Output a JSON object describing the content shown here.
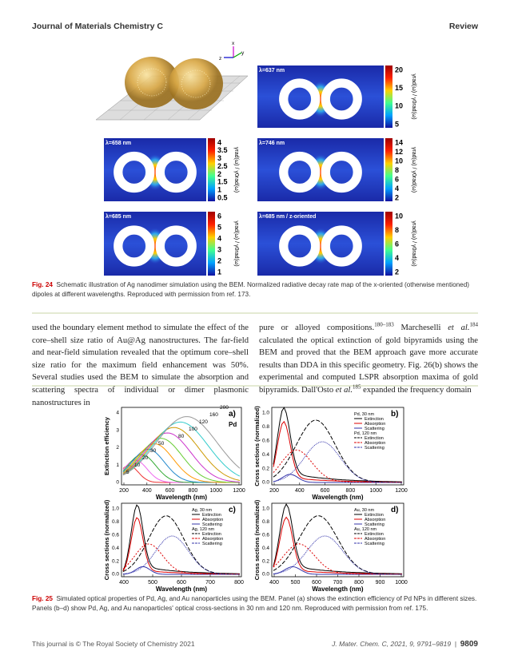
{
  "header": {
    "journal": "Journal of Materials Chemistry C",
    "section": "Review"
  },
  "figure24": {
    "axes": [
      "x",
      "z",
      "y"
    ],
    "colorbar_label": "γrad(ω) / γ0rad(ω)",
    "panels": [
      {
        "label": "λ=637 nm",
        "colorbar": [
          "20",
          "15",
          "10",
          "5"
        ]
      },
      {
        "label": "λ=658 nm",
        "colorbar": [
          "4",
          "3.5",
          "3",
          "2.5",
          "2",
          "1.5",
          "1",
          "0.5"
        ]
      },
      {
        "label": "λ=746 nm",
        "colorbar": [
          "14",
          "12",
          "10",
          "8",
          "6",
          "4",
          "2"
        ]
      },
      {
        "label": "λ=685 nm",
        "colorbar": [
          "6",
          "5",
          "4",
          "3",
          "2",
          "1"
        ]
      },
      {
        "label": "λ=685 nm / z-oriented",
        "colorbar": [
          "10",
          "8",
          "6",
          "4",
          "2"
        ]
      }
    ],
    "caption": {
      "label": "Fig. 24",
      "text": "Schematic illustration of Ag nanodimer simulation using the BEM. Normalized radiative decay rate map of the x-oriented (otherwise mentioned) dipoles at different wavelengths. Reproduced with permission from ref. 173."
    }
  },
  "body": {
    "left": "used the boundary element method to simulate the effect of the core–shell size ratio of Au@Ag nanostructures. The far-field and near-field simulation revealed that the optimum core–shell size ratio for the maximum field enhancement was 50%. Several studies used the BEM to simulate the absorption and scattering spectra of individual or dimer plasmonic nanostructures in",
    "right": [
      {
        "text": "pure or alloyed compositions."
      },
      {
        "text": "180–183",
        "style": "sup"
      },
      {
        "text": " Marcheselli "
      },
      {
        "text": "et al.",
        "style": "italic"
      },
      {
        "text": "184",
        "style": "sup"
      },
      {
        "text": " calculated the optical extinction of gold bipyramids using the BEM and proved that the BEM approach gave more accurate results than DDA in this specific geometry. Fig. 26(b) shows the experimental and computed LSPR absorption maxima of gold bipyramids. Dall'Osto "
      },
      {
        "text": "et al.",
        "style": "italic"
      },
      {
        "text": "185",
        "style": "sup"
      },
      {
        "text": " expanded the frequency domain"
      }
    ]
  },
  "figure25": {
    "panels": [
      {
        "label": "a)",
        "ylabel": "Extinction efficiency",
        "xlabel": "Wavelength (nm)",
        "xticks": [
          "200",
          "400",
          "600",
          "800",
          "1000",
          "1200"
        ],
        "yticks": [
          "0",
          "1",
          "2",
          "3",
          "4"
        ],
        "legend": [
          {
            "title": "Pd",
            "entries": []
          }
        ],
        "sizes": [
          "5",
          "10",
          "20",
          "30",
          "50",
          "80",
          "100",
          "120",
          "160",
          "200"
        ]
      },
      {
        "label": "b)",
        "ylabel": "Cross sections (normalized)",
        "xlabel": "Wavelength (nm)",
        "xticks": [
          "200",
          "400",
          "600",
          "800",
          "1000",
          "1200"
        ],
        "yticks": [
          "0.0",
          "0.2",
          "0.4",
          "0.6",
          "0.8",
          "1.0"
        ],
        "legend": [
          {
            "title": "Pd, 30 nm",
            "entries": [
              "Extinction",
              "Absorption",
              "Scattering"
            ]
          },
          {
            "title": "Pd, 120 nm",
            "entries": [
              "Extinction",
              "Absorption",
              "Scattering"
            ]
          }
        ]
      },
      {
        "label": "c)",
        "ylabel": "Cross sections (normalized)",
        "xlabel": "Wavelength (nm)",
        "xticks": [
          "400",
          "500",
          "600",
          "700",
          "800"
        ],
        "yticks": [
          "0.0",
          "0.2",
          "0.4",
          "0.6",
          "0.8",
          "1.0"
        ],
        "legend": [
          {
            "title": "Ag, 30 nm",
            "entries": [
              "Extinction",
              "Absorption",
              "Scattering"
            ]
          },
          {
            "title": "Ag, 120 nm",
            "entries": [
              "Extinction",
              "Absorption",
              "Scattering"
            ]
          }
        ]
      },
      {
        "label": "d)",
        "ylabel": "Cross sections (normalized)",
        "xlabel": "Wavelength (nm)",
        "xticks": [
          "400",
          "500",
          "600",
          "700",
          "800",
          "900",
          "1000"
        ],
        "yticks": [
          "0.0",
          "0.2",
          "0.4",
          "0.6",
          "0.8",
          "1.0"
        ],
        "legend": [
          {
            "title": "Au, 30 nm",
            "entries": [
              "Extinction",
              "Absorption",
              "Scattering"
            ]
          },
          {
            "title": "Au, 120 nm",
            "entries": [
              "Extinction",
              "Absorption",
              "Scattering"
            ]
          }
        ]
      }
    ],
    "caption": {
      "label": "Fig. 25",
      "text": "Simulated optical properties of Pd, Ag, and Au nanoparticles using the BEM. Panel (a) shows the extinction efficiency of Pd NPs in different sizes. Panels (b–d) show Pd, Ag, and Au nanoparticles' optical cross-sections in 30 nm and 120 nm. Reproduced with permission from ref. 175."
    }
  },
  "footer": {
    "copyright": "This journal is © The Royal Society of Chemistry 2021",
    "citation": "J. Mater. Chem. C, 2021, 9, 9791–9819",
    "page": "9809"
  }
}
